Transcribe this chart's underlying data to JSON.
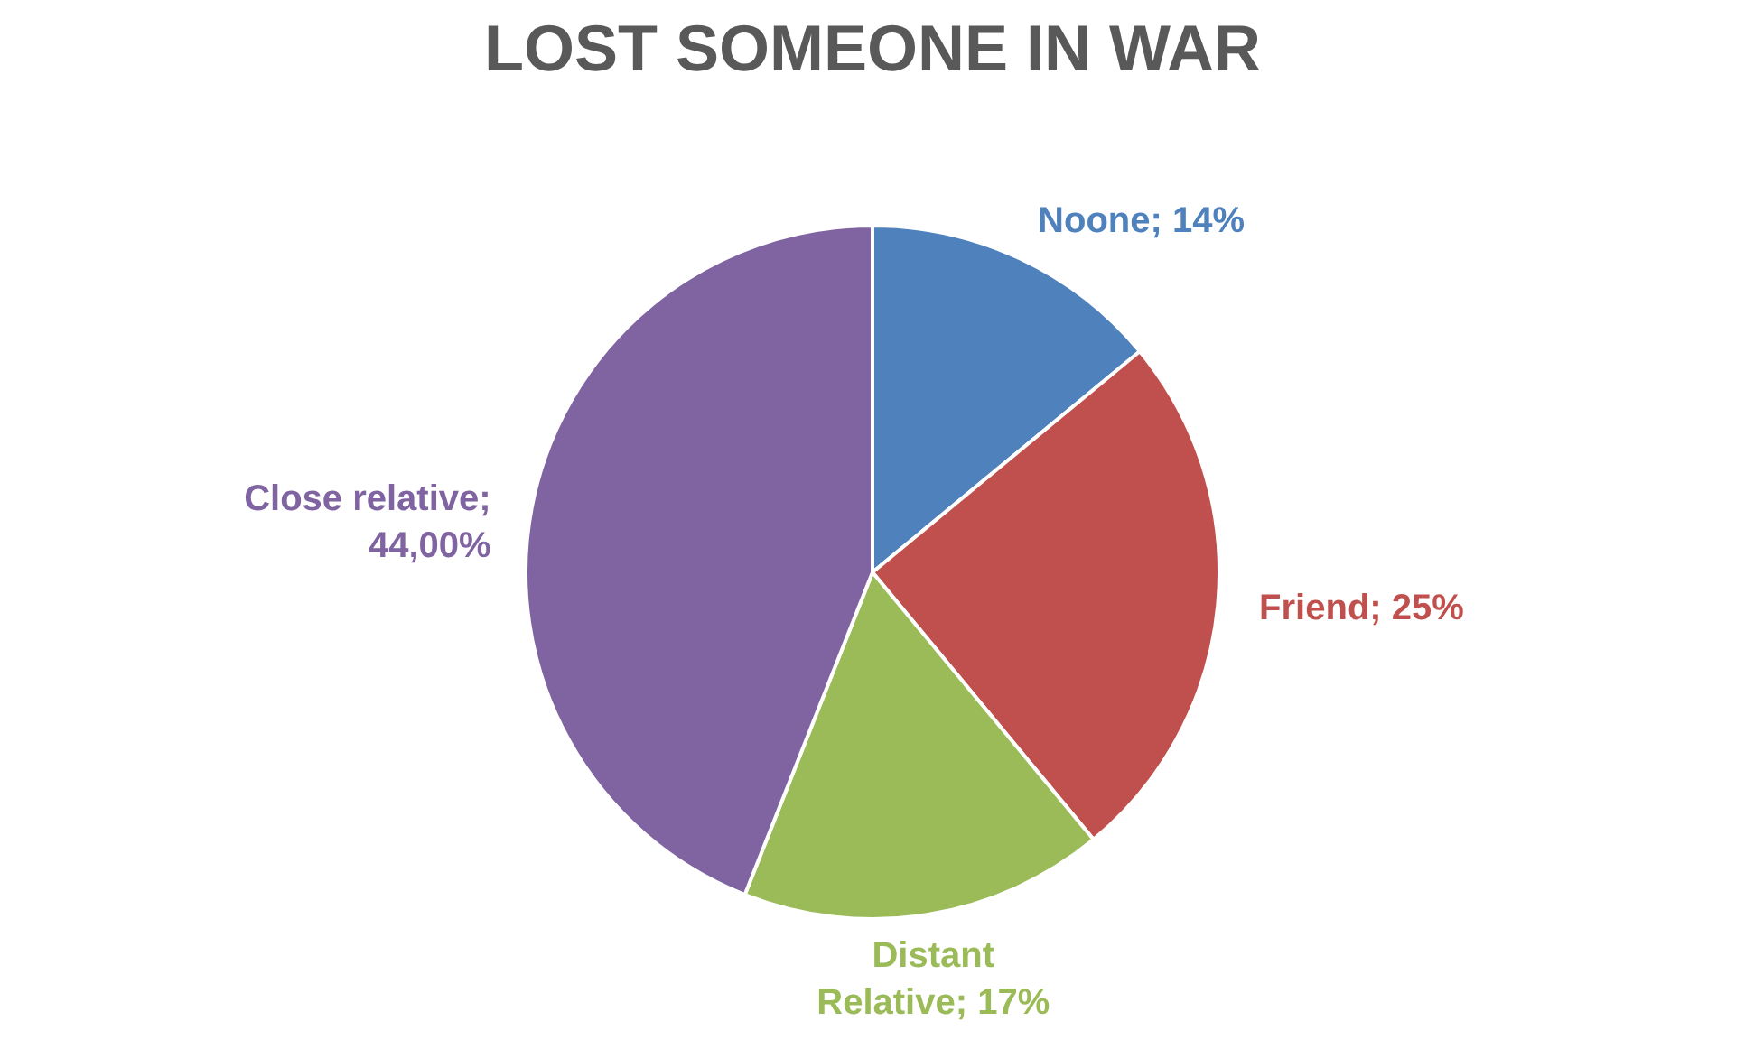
{
  "chart_data": {
    "type": "pie",
    "title": "LOST SOMEONE IN WAR",
    "categories": [
      "Noone",
      "Friend",
      "Distant Relative",
      "Close relative"
    ],
    "values": [
      14,
      25,
      17,
      44
    ],
    "colors": [
      "#4f81bd",
      "#c0504d",
      "#9bbb59",
      "#8064a2"
    ],
    "value_labels": [
      "; 14%",
      "; 25%",
      "; 17%",
      "; 44,00%"
    ]
  }
}
